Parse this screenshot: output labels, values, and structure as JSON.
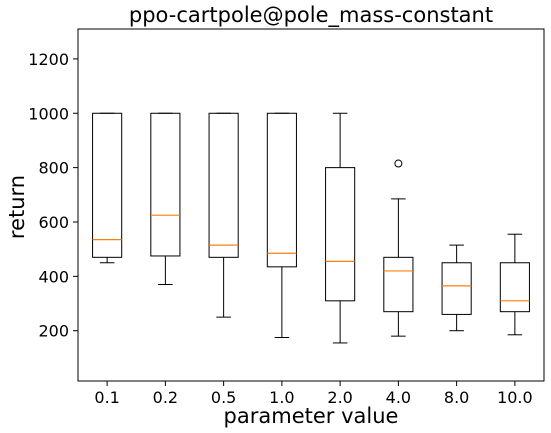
{
  "chart_data": {
    "type": "boxplot",
    "title": "ppo-cartpole@pole_mass-constant",
    "xlabel": "parameter value",
    "ylabel": "return",
    "categories": [
      "0.1",
      "0.2",
      "0.5",
      "1.0",
      "2.0",
      "4.0",
      "8.0",
      "10.0"
    ],
    "ylim": [
      15,
      1310
    ],
    "yticks": [
      200,
      400,
      600,
      800,
      1000,
      1200
    ],
    "grid": false,
    "boxes": [
      {
        "whisker_low": 450,
        "q1": 470,
        "median": 535,
        "q3": 1000,
        "whisker_high": 1000,
        "outliers": []
      },
      {
        "whisker_low": 370,
        "q1": 475,
        "median": 625,
        "q3": 1000,
        "whisker_high": 1000,
        "outliers": []
      },
      {
        "whisker_low": 250,
        "q1": 470,
        "median": 515,
        "q3": 1000,
        "whisker_high": 1000,
        "outliers": []
      },
      {
        "whisker_low": 175,
        "q1": 435,
        "median": 485,
        "q3": 1000,
        "whisker_high": 1000,
        "outliers": []
      },
      {
        "whisker_low": 155,
        "q1": 310,
        "median": 455,
        "q3": 800,
        "whisker_high": 1000,
        "outliers": []
      },
      {
        "whisker_low": 180,
        "q1": 270,
        "median": 420,
        "q3": 470,
        "whisker_high": 685,
        "outliers": [
          815
        ]
      },
      {
        "whisker_low": 200,
        "q1": 260,
        "median": 365,
        "q3": 450,
        "whisker_high": 515,
        "outliers": []
      },
      {
        "whisker_low": 185,
        "q1": 270,
        "median": 310,
        "q3": 450,
        "whisker_high": 555,
        "outliers": []
      }
    ],
    "colors": {
      "box": "#000000",
      "median": "#ff7f0e",
      "outlier": "#000000"
    }
  }
}
